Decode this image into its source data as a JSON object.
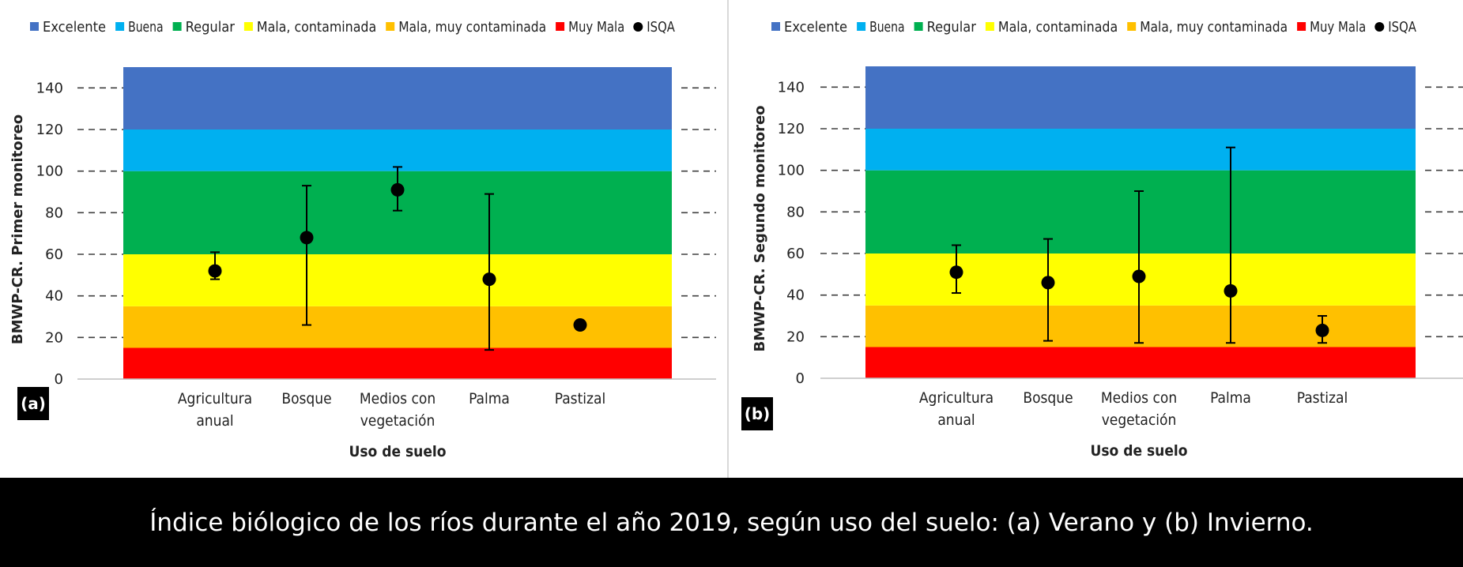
{
  "colors": {
    "Excelente": "#4472C4",
    "Buena": "#00B0F0",
    "Regular": "#00B050",
    "Mala, contaminada": "#FFFF00",
    "Mala, muy contaminada": "#FFC000",
    "Muy Mala": "#FF0000",
    "ISQA": "#000000"
  },
  "chart_data": [
    {
      "type": "scatter",
      "panel_label": "(a)",
      "legend": [
        "Excelente",
        "Buena",
        "Regular",
        "Mala, contaminada",
        "Mala, muy contaminada",
        "Muy Mala",
        "ISQA"
      ],
      "legend_position": "top",
      "bands": [
        {
          "name": "Muy Mala",
          "from": 0,
          "to": 15
        },
        {
          "name": "Mala, muy contaminada",
          "from": 15,
          "to": 35
        },
        {
          "name": "Mala, contaminada",
          "from": 35,
          "to": 60
        },
        {
          "name": "Regular",
          "from": 60,
          "to": 100
        },
        {
          "name": "Buena",
          "from": 100,
          "to": 120
        },
        {
          "name": "Excelente",
          "from": 120,
          "to": 150
        }
      ],
      "categories": [
        "Agricultura anual",
        "Bosque",
        "Medios con vegetación",
        "Palma",
        "Pastizal"
      ],
      "category_lines": [
        [
          "Agricultura",
          "anual"
        ],
        [
          "Bosque"
        ],
        [
          "Medios con",
          "vegetación"
        ],
        [
          "Palma"
        ],
        [
          "Pastizal"
        ]
      ],
      "series": [
        {
          "name": "ISQA",
          "values": [
            52,
            68,
            91,
            48,
            26
          ],
          "err_low": [
            48,
            26,
            81,
            14,
            null
          ],
          "err_high": [
            61,
            93,
            102,
            89,
            null
          ]
        }
      ],
      "xlabel": "Uso de suelo",
      "ylabel": "BMWP-CR. Primer monitoreo",
      "ylim": [
        -0.5,
        150
      ],
      "yticks": [
        0,
        20,
        40,
        60,
        80,
        100,
        120,
        140
      ]
    },
    {
      "type": "scatter",
      "panel_label": "(b)",
      "legend": [
        "Excelente",
        "Buena",
        "Regular",
        "Mala, contaminada",
        "Mala, muy contaminada",
        "Muy Mala",
        "ISQA"
      ],
      "legend_position": "top",
      "bands": [
        {
          "name": "Muy Mala",
          "from": 0,
          "to": 15
        },
        {
          "name": "Mala, muy contaminada",
          "from": 15,
          "to": 35
        },
        {
          "name": "Mala, contaminada",
          "from": 35,
          "to": 60
        },
        {
          "name": "Regular",
          "from": 60,
          "to": 100
        },
        {
          "name": "Buena",
          "from": 100,
          "to": 120
        },
        {
          "name": "Excelente",
          "from": 120,
          "to": 150
        }
      ],
      "categories": [
        "Agricultura anual",
        "Bosque",
        "Medios con vegetación",
        "Palma",
        "Pastizal"
      ],
      "category_lines": [
        [
          "Agricultura",
          "anual"
        ],
        [
          "Bosque"
        ],
        [
          "Medios con",
          "vegetación"
        ],
        [
          "Palma"
        ],
        [
          "Pastizal"
        ]
      ],
      "series": [
        {
          "name": "ISQA",
          "values": [
            51,
            46,
            49,
            42,
            23
          ],
          "err_low": [
            41,
            18,
            17,
            17,
            17
          ],
          "err_high": [
            64,
            67,
            90,
            111,
            30
          ]
        }
      ],
      "xlabel": "Uso de suelo",
      "ylabel": "BMWP-CR. Segundo monitoreo",
      "ylim": [
        0,
        150
      ],
      "yticks": [
        0,
        20,
        40,
        60,
        80,
        100,
        120,
        140
      ]
    }
  ],
  "caption": "Índice biólogico de los ríos durante el año 2019, según uso del suelo: (a) Verano y (b) Invierno."
}
